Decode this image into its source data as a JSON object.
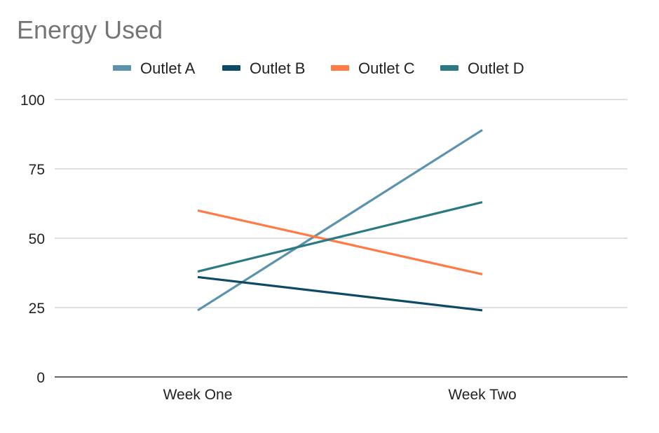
{
  "chart_data": {
    "type": "line",
    "title": "Energy Used",
    "xlabel": "",
    "ylabel": "",
    "categories": [
      "Week One",
      "Week Two"
    ],
    "ylim": [
      0,
      100
    ],
    "yticks": [
      0,
      25,
      50,
      75,
      100
    ],
    "grid": true,
    "legend_position": "top",
    "series": [
      {
        "name": "Outlet A",
        "color": "#5b93ad",
        "values": [
          24,
          89
        ]
      },
      {
        "name": "Outlet B",
        "color": "#0d4a63",
        "values": [
          36,
          24
        ]
      },
      {
        "name": "Outlet C",
        "color": "#ff7a45",
        "values": [
          60,
          37
        ]
      },
      {
        "name": "Outlet D",
        "color": "#2b7a82",
        "values": [
          38,
          63
        ]
      }
    ]
  }
}
